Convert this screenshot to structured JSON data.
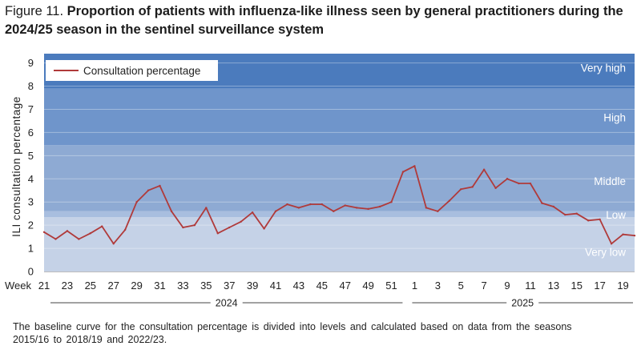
{
  "figure": {
    "label": "Figure 11.",
    "title": "Proportion of patients with influenza-like illness seen by general practitioners during the 2024/25 season in the sentinel surveillance system",
    "footnote": "The baseline curve for the consultation percentage is divided into levels and calculated based on data from the seasons 2015/16 to 2018/19 and 2022/23."
  },
  "colors": {
    "very_low": "#c5d2e7",
    "low": "#a8bedf",
    "middle": "#8eaad3",
    "high": "#6f95cb",
    "very_high": "#4b7bbd",
    "line": "#b03a3a"
  },
  "chart_data": {
    "type": "line",
    "title": "Proportion of patients with influenza-like illness seen by general practitioners during the 2024/25 season in the sentinel surveillance system",
    "ylabel": "ILI consultation percentage",
    "xlabel": "Week",
    "ylim": [
      0,
      9.4
    ],
    "yticks": [
      0,
      1,
      2,
      3,
      4,
      5,
      6,
      7,
      8,
      9
    ],
    "x_tick_labels": [
      "21",
      "23",
      "25",
      "27",
      "29",
      "31",
      "33",
      "35",
      "37",
      "39",
      "41",
      "43",
      "45",
      "47",
      "49",
      "51",
      "1",
      "3",
      "5",
      "7",
      "9",
      "11",
      "13",
      "15",
      "17",
      "19"
    ],
    "x_axis_prefix": "Week",
    "years": [
      "2024",
      "2025"
    ],
    "legend": {
      "label": "Consultation percentage",
      "position": "top-left"
    },
    "bands": [
      {
        "name": "Very low",
        "from": 0,
        "to": 2.35
      },
      {
        "name": "Low",
        "from": 2.35,
        "to": 2.6
      },
      {
        "name": "Middle",
        "from": 2.6,
        "to": 5.45
      },
      {
        "name": "High",
        "from": 5.45,
        "to": 7.9
      },
      {
        "name": "Very high",
        "from": 7.9,
        "to": 9.4
      }
    ],
    "series": [
      {
        "name": "Consultation percentage",
        "weeks": [
          "21",
          "22",
          "23",
          "24",
          "25",
          "26",
          "27",
          "28",
          "29",
          "30",
          "31",
          "32",
          "33",
          "34",
          "35",
          "36",
          "37",
          "38",
          "39",
          "40",
          "41",
          "42",
          "43",
          "44",
          "45",
          "46",
          "47",
          "48",
          "49",
          "50",
          "51",
          "52",
          "1",
          "2",
          "3",
          "4",
          "5",
          "6",
          "7",
          "8",
          "9",
          "10",
          "11",
          "12",
          "13",
          "14",
          "15",
          "16",
          "17",
          "18",
          "19",
          "20"
        ],
        "values": [
          1.7,
          1.4,
          1.75,
          1.4,
          1.65,
          1.95,
          1.2,
          1.8,
          3.0,
          3.5,
          3.7,
          2.6,
          1.9,
          2.0,
          2.75,
          1.65,
          1.9,
          2.15,
          2.55,
          1.85,
          2.6,
          2.9,
          2.75,
          2.9,
          2.9,
          2.6,
          2.85,
          2.75,
          2.7,
          2.8,
          3.0,
          4.3,
          4.55,
          2.75,
          2.6,
          3.05,
          3.55,
          3.65,
          4.4,
          3.6,
          4.0,
          3.8,
          3.8,
          2.95,
          2.8,
          2.45,
          2.5,
          2.2,
          2.25,
          1.2,
          1.6,
          1.55
        ]
      }
    ]
  }
}
